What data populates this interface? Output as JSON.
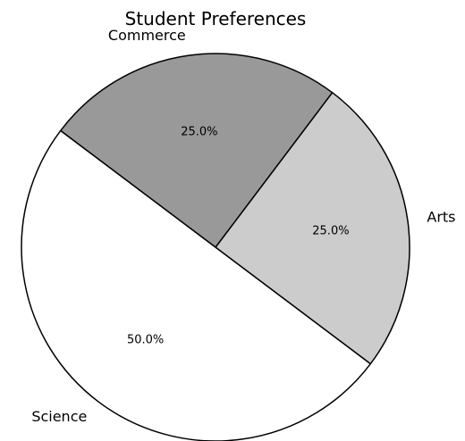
{
  "chart_data": {
    "type": "pie",
    "title": "Student Preferences",
    "categories": [
      "Arts",
      "Commerce",
      "Science"
    ],
    "values": [
      25.0,
      25.0,
      50.0
    ],
    "percent_labels": [
      "25.0%",
      "25.0%",
      "50.0%"
    ],
    "colors": [
      "#cccccc",
      "#999999",
      "#ffffff"
    ],
    "edge_color": "#000000",
    "legend": "none"
  }
}
